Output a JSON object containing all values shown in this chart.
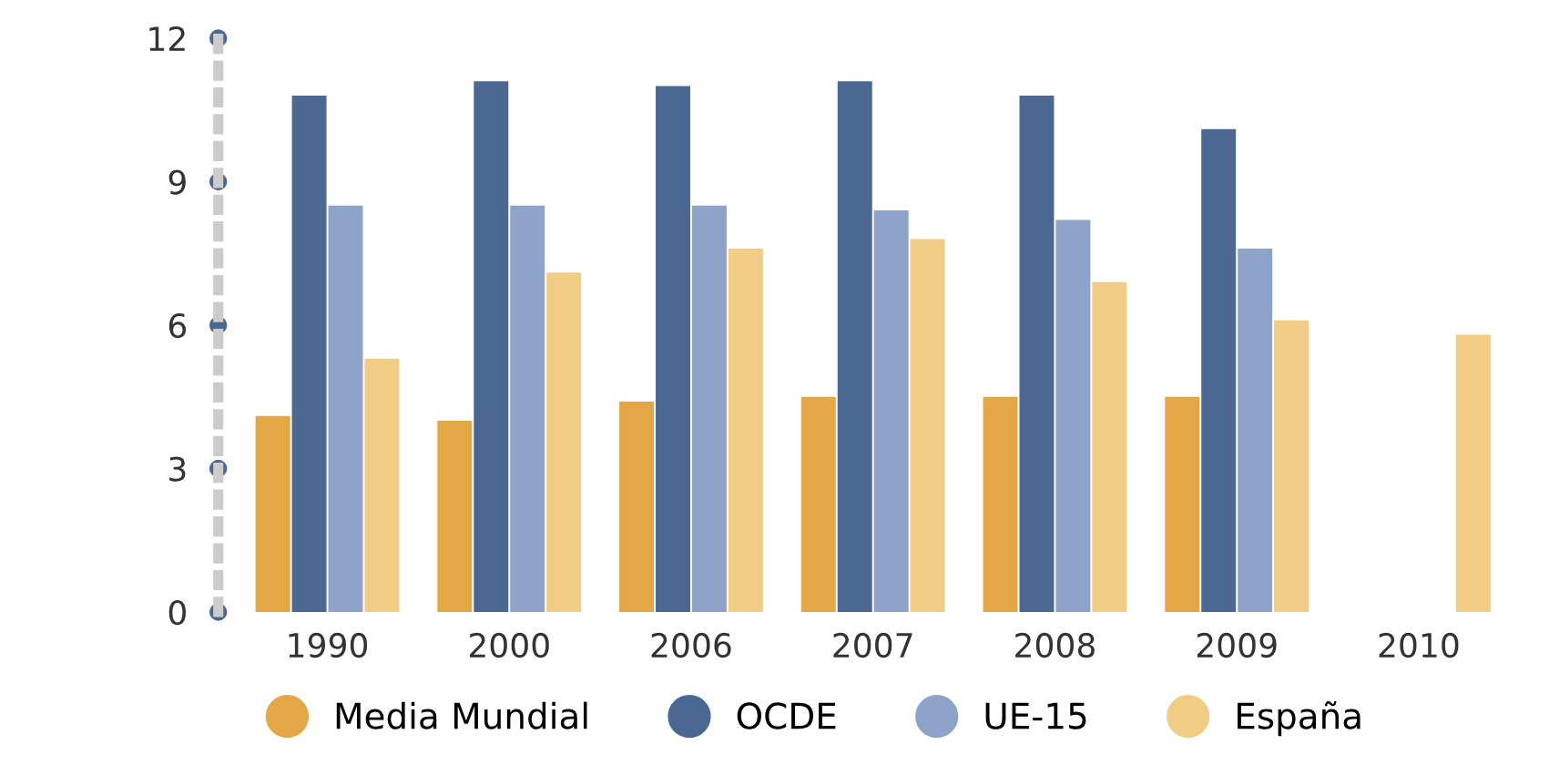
{
  "chart_data": {
    "type": "bar",
    "categories": [
      "1990",
      "2000",
      "2006",
      "2007",
      "2008",
      "2009",
      "2010"
    ],
    "series": [
      {
        "name": "Media Mundial",
        "color": "#e3a845",
        "values": [
          4.1,
          4.0,
          4.4,
          4.5,
          4.5,
          4.5,
          null
        ]
      },
      {
        "name": "OCDE",
        "color": "#4a6891",
        "values": [
          10.8,
          11.1,
          11.0,
          11.1,
          10.8,
          10.1,
          null
        ]
      },
      {
        "name": "UE-15",
        "color": "#8ea3c8",
        "values": [
          8.5,
          8.5,
          8.5,
          8.4,
          8.2,
          7.6,
          null
        ]
      },
      {
        "name": "España",
        "color": "#f1cc85",
        "values": [
          5.3,
          7.1,
          7.6,
          7.8,
          6.9,
          6.1,
          5.8
        ]
      }
    ],
    "ylim": [
      0,
      12
    ],
    "yticks": [
      0,
      3,
      6,
      9,
      12
    ],
    "grid": false,
    "legend": "bottom"
  }
}
